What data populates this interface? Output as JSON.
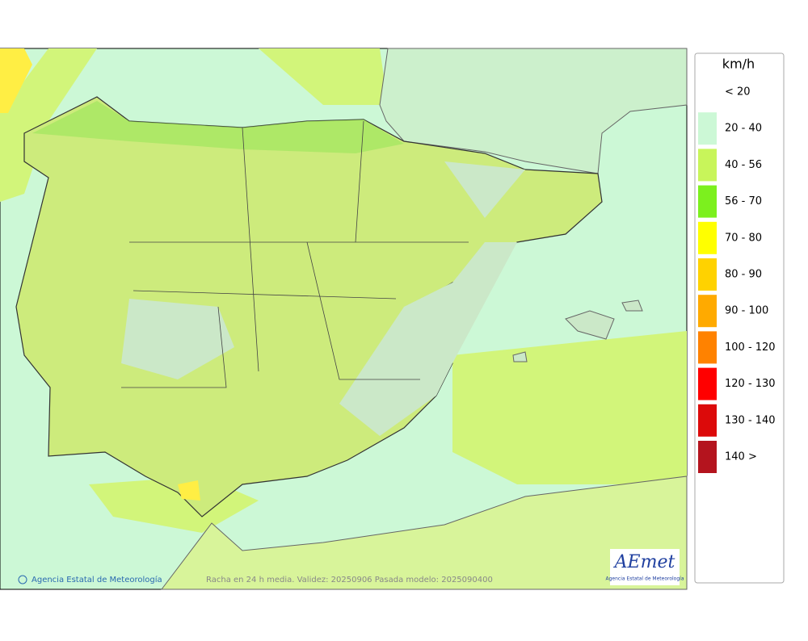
{
  "legend": {
    "title": "km/h",
    "items": [
      {
        "label": "< 20"
      },
      {
        "label": "20 - 40",
        "color": "#ccf8d6"
      },
      {
        "label": "40 - 56",
        "color": "#c8f55a"
      },
      {
        "label": "56 - 70",
        "color": "#7cf01e"
      },
      {
        "label": "70 - 80",
        "color": "#ffff00"
      },
      {
        "label": "80 - 90",
        "color": "#ffd200"
      },
      {
        "label": "90 - 100",
        "color": "#ffaa00"
      },
      {
        "label": "100 - 120",
        "color": "#ff8200"
      },
      {
        "label": "120 - 130",
        "color": "#ff0000"
      },
      {
        "label": "130 - 140",
        "color": "#dc0a0a"
      },
      {
        "label": "140 >",
        "color": "#b4141e"
      }
    ]
  },
  "footer": {
    "credit": "Agencia Estatal de Meteorología",
    "caption": "Racha en 24 h media. Validez: 20250906 Pasada modelo: 2025090400"
  },
  "logo": {
    "name": "AEmet",
    "subtitle": "Agencia Estatal de Meteorología"
  }
}
